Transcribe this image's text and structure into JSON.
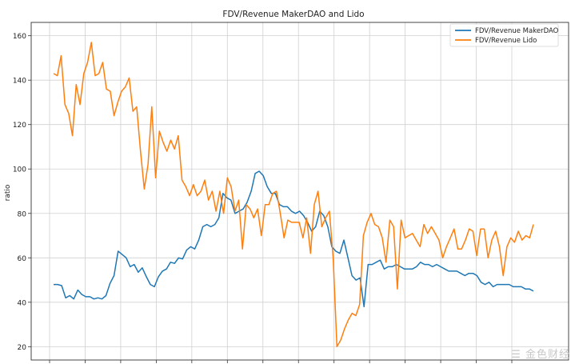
{
  "chart_data": {
    "type": "line",
    "title": "FDV/Revenue MakerDAO and Lido",
    "xlabel": "",
    "ylabel": "ratio",
    "ylim": [
      14,
      166
    ],
    "yticks": [
      20,
      40,
      60,
      80,
      100,
      120,
      140,
      160
    ],
    "grid": true,
    "legend_position": "top-right",
    "x_tick_count": 14,
    "series": [
      {
        "name": "FDV/Revenue MakerDAO",
        "color": "#1f77b4",
        "values": [
          48,
          48,
          47.5,
          42,
          43,
          41.5,
          45.5,
          43.5,
          42.5,
          42.5,
          41.5,
          42,
          41.5,
          43,
          48.5,
          52,
          63,
          61.5,
          60,
          56,
          57,
          53.5,
          55.5,
          51.5,
          48,
          47,
          51.5,
          54,
          55,
          58,
          57.5,
          60,
          59.5,
          63.5,
          65,
          64,
          68,
          74,
          75,
          74,
          75,
          78,
          89,
          87,
          86,
          80,
          81,
          82,
          85,
          90,
          98,
          99,
          97,
          92,
          89,
          89,
          84,
          83,
          83,
          81,
          80,
          81,
          79,
          76,
          72,
          74,
          81,
          79,
          74,
          65,
          63,
          62,
          68,
          60,
          52,
          50,
          51,
          38,
          57,
          57,
          58,
          59,
          55,
          56,
          56,
          57,
          56,
          55,
          55,
          55,
          56,
          58,
          57,
          57,
          56,
          57,
          56,
          55,
          54,
          54,
          54,
          53,
          52,
          53,
          53,
          52,
          49,
          48,
          49,
          47,
          48,
          48,
          48,
          48,
          47,
          47,
          47,
          46,
          46,
          45
        ]
      },
      {
        "name": "FDV/Revenue Lido",
        "color": "#ff7f0e",
        "values": [
          143,
          142,
          151,
          129,
          125,
          115,
          138,
          129,
          143,
          148,
          157,
          142,
          143,
          148,
          136,
          135,
          124,
          130,
          135,
          137,
          141,
          126,
          128,
          108,
          91,
          102,
          128,
          96,
          117,
          112,
          108,
          113,
          109,
          115,
          95,
          92,
          88,
          93,
          88,
          90,
          95,
          86,
          90,
          81,
          90,
          80,
          96,
          92,
          81,
          86,
          64,
          84,
          82,
          78,
          82,
          70,
          84,
          84,
          89,
          90,
          80,
          69,
          77,
          76,
          76,
          76,
          69,
          78,
          62,
          84,
          90,
          74,
          78,
          81,
          60,
          20,
          23,
          28,
          32,
          35,
          34,
          39,
          70,
          76,
          80,
          75,
          74,
          69,
          58,
          77,
          74,
          46,
          77,
          69,
          70,
          71,
          68,
          65,
          75,
          71,
          74,
          71,
          68,
          60,
          65,
          69,
          73,
          64,
          64,
          68,
          73,
          72,
          61,
          73,
          73,
          60,
          68,
          72,
          65,
          52,
          65,
          69,
          67,
          72,
          68,
          70,
          69,
          75
        ]
      }
    ]
  },
  "watermark_text": "☰ 金色财经"
}
